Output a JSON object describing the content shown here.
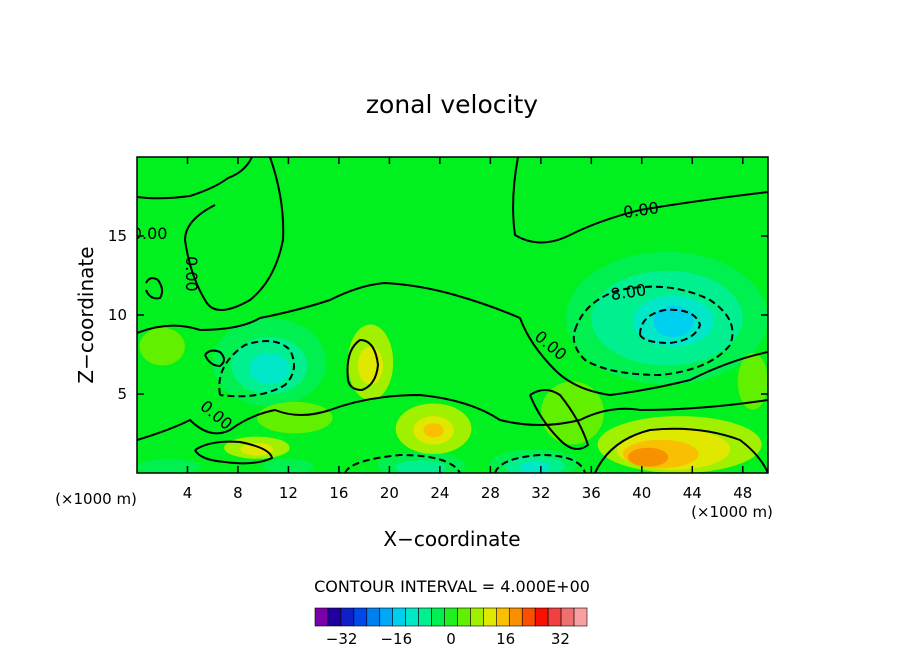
{
  "chart_data": {
    "type": "heatmap",
    "subtype": "filled-contour",
    "title": "zonal velocity",
    "xlabel": "X−coordinate",
    "ylabel": "Z−coordinate",
    "x_unit_note": "(×1000 m)",
    "y_unit_note": "(×1000 m)",
    "xlim": [
      0,
      50
    ],
    "ylim": [
      0,
      20
    ],
    "x_ticks": [
      4,
      8,
      12,
      16,
      20,
      24,
      28,
      32,
      36,
      40,
      44,
      48
    ],
    "y_ticks": [
      5,
      10,
      15
    ],
    "contour_interval_label": "CONTOUR INTERVAL = 4.000E+00",
    "contour_interval": 4,
    "contour_labels": [
      "0.00",
      "0.00",
      "0.00",
      "8.00",
      "0.00",
      "0.00"
    ],
    "colorbar": {
      "levels": [
        -36,
        -32,
        -28,
        -24,
        -20,
        -16,
        -12,
        -8,
        -4,
        0,
        4,
        8,
        12,
        16,
        20,
        24,
        28,
        32,
        36
      ],
      "tick_labels": [
        "−32",
        "−16",
        "0",
        "16",
        "32"
      ],
      "colors": [
        "#7a00aa",
        "#2200a0",
        "#1020c8",
        "#0048e8",
        "#0080f0",
        "#00a8f8",
        "#00d0f0",
        "#00e8c8",
        "#00f090",
        "#00f050",
        "#20f020",
        "#60f000",
        "#a0f000",
        "#e0e800",
        "#f8c000",
        "#f89000",
        "#f85000",
        "#f81000",
        "#f04040",
        "#f07070",
        "#f8a0a0"
      ]
    },
    "regions": [
      {
        "value": -4,
        "center": [
          10.5,
          7.0
        ],
        "extent": [
          4.5,
          2.8
        ]
      },
      {
        "value": -8,
        "center": [
          10.5,
          6.8
        ],
        "extent": [
          3.0,
          1.8
        ]
      },
      {
        "value": -12,
        "center": [
          10.5,
          6.6
        ],
        "extent": [
          1.6,
          1.0
        ]
      },
      {
        "value": -4,
        "center": [
          42.0,
          9.8
        ],
        "extent": [
          8.0,
          4.2
        ]
      },
      {
        "value": -8,
        "center": [
          42.0,
          9.8
        ],
        "extent": [
          6.0,
          3.0
        ]
      },
      {
        "value": -12,
        "center": [
          42.5,
          9.6
        ],
        "extent": [
          3.2,
          1.6
        ]
      },
      {
        "value": -16,
        "center": [
          42.5,
          9.6
        ],
        "extent": [
          1.6,
          1.0
        ]
      },
      {
        "value": 8,
        "center": [
          18.5,
          7.0
        ],
        "extent": [
          1.8,
          2.4
        ]
      },
      {
        "value": 12,
        "center": [
          18.5,
          6.8
        ],
        "extent": [
          1.0,
          1.2
        ]
      },
      {
        "value": 8,
        "center": [
          23.5,
          2.8
        ],
        "extent": [
          3.0,
          1.6
        ]
      },
      {
        "value": 12,
        "center": [
          23.5,
          2.7
        ],
        "extent": [
          1.6,
          0.9
        ]
      },
      {
        "value": 16,
        "center": [
          23.5,
          2.7
        ],
        "extent": [
          0.8,
          0.45
        ]
      },
      {
        "value": 8,
        "center": [
          43.0,
          1.8
        ],
        "extent": [
          6.5,
          1.8
        ]
      },
      {
        "value": 12,
        "center": [
          42.5,
          1.5
        ],
        "extent": [
          4.5,
          1.3
        ]
      },
      {
        "value": 16,
        "center": [
          41.5,
          1.2
        ],
        "extent": [
          3.0,
          0.9
        ]
      },
      {
        "value": 20,
        "center": [
          40.5,
          1.0
        ],
        "extent": [
          1.6,
          0.6
        ]
      },
      {
        "value": 8,
        "center": [
          9.5,
          1.6
        ],
        "extent": [
          2.6,
          0.7
        ]
      },
      {
        "value": 12,
        "center": [
          9.5,
          1.5
        ],
        "extent": [
          1.3,
          0.4
        ]
      },
      {
        "value": -4,
        "center": [
          22.5,
          0.5
        ],
        "extent": [
          3.5,
          0.8
        ]
      },
      {
        "value": -8,
        "center": [
          22.5,
          0.35
        ],
        "extent": [
          2.0,
          0.45
        ]
      },
      {
        "value": -4,
        "center": [
          31.5,
          0.6
        ],
        "extent": [
          3.5,
          0.9
        ]
      },
      {
        "value": -8,
        "center": [
          31.5,
          0.45
        ],
        "extent": [
          2.4,
          0.6
        ]
      },
      {
        "value": -12,
        "center": [
          31.5,
          0.35
        ],
        "extent": [
          1.2,
          0.35
        ]
      },
      {
        "value": -4,
        "center": [
          2.5,
          0.4
        ],
        "extent": [
          2.5,
          0.5
        ]
      },
      {
        "value": -4,
        "center": [
          12.0,
          0.4
        ],
        "extent": [
          2.0,
          0.5
        ]
      },
      {
        "value": 4,
        "center": [
          34.5,
          3.8
        ],
        "extent": [
          2.5,
          2.0
        ]
      },
      {
        "value": 4,
        "center": [
          48.8,
          5.8
        ],
        "extent": [
          1.2,
          1.8
        ]
      },
      {
        "value": 4,
        "center": [
          2.0,
          8.0
        ],
        "extent": [
          1.8,
          1.2
        ]
      },
      {
        "value": 4,
        "center": [
          12.5,
          3.5
        ],
        "extent": [
          3.0,
          1.0
        ]
      }
    ]
  }
}
